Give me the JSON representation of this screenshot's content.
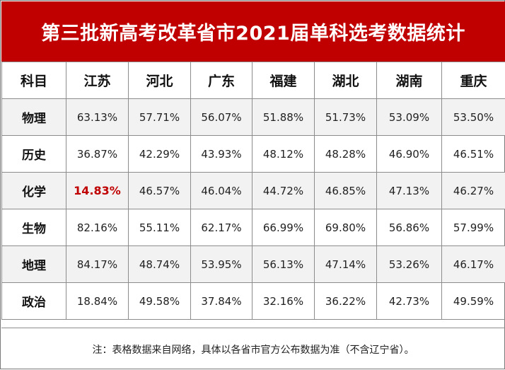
{
  "title": "第三批新高考改革省市2021届单科选考数据统计",
  "headers": [
    "科目",
    "江苏",
    "河北",
    "广东",
    "福建",
    "湖北",
    "湖南",
    "重庆"
  ],
  "rows": [
    {
      "subject": "物理",
      "values": [
        "63.13%",
        "57.71%",
        "56.07%",
        "51.88%",
        "51.73%",
        "53.09%",
        "53.50%"
      ]
    },
    {
      "subject": "历史",
      "values": [
        "36.87%",
        "42.29%",
        "43.93%",
        "48.12%",
        "48.28%",
        "46.90%",
        "46.51%"
      ]
    },
    {
      "subject": "化学",
      "values": [
        "14.83%",
        "46.57%",
        "46.04%",
        "44.72%",
        "46.85%",
        "47.13%",
        "46.27%"
      ]
    },
    {
      "subject": "生物",
      "values": [
        "82.16%",
        "55.11%",
        "62.17%",
        "66.99%",
        "69.80%",
        "56.86%",
        "57.99%"
      ]
    },
    {
      "subject": "地理",
      "values": [
        "84.17%",
        "48.74%",
        "53.95%",
        "56.13%",
        "47.14%",
        "53.26%",
        "46.17%"
      ]
    },
    {
      "subject": "政治",
      "values": [
        "18.84%",
        "49.58%",
        "37.84%",
        "32.16%",
        "36.22%",
        "42.73%",
        "49.59%"
      ]
    }
  ],
  "highlight_color": "#c00000",
  "note": "注：表格数据来自网络，具体以各省市官方公布数据为准（不含辽宁省）。"
}
